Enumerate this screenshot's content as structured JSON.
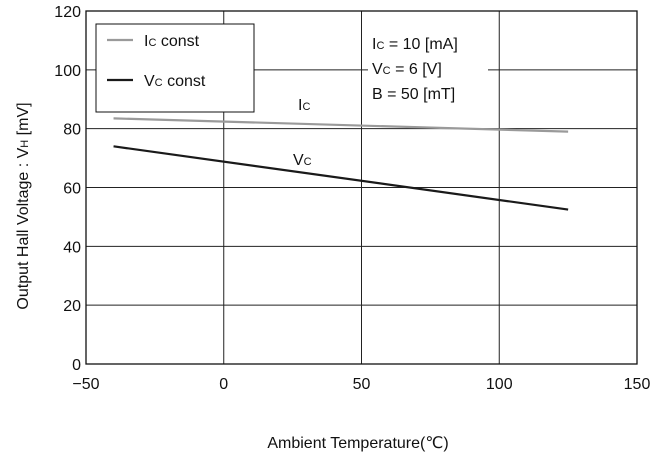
{
  "chart_data": {
    "type": "line",
    "title": "",
    "xlabel": "Ambient Temperature(℃)",
    "ylabel": "Output Hall Voltage : V",
    "ylabel_sub": "H",
    "ylabel_unit": " [mV]",
    "xlim": [
      -50,
      150
    ],
    "ylim": [
      0,
      120
    ],
    "xticks": [
      -50,
      0,
      50,
      100,
      150
    ],
    "xtick_labels": [
      "−50",
      "0",
      "50",
      "100",
      "150"
    ],
    "yticks": [
      0,
      20,
      40,
      60,
      80,
      100,
      120
    ],
    "ytick_labels": [
      "0",
      "20",
      "40",
      "60",
      "80",
      "100",
      "120"
    ],
    "grid": true,
    "series": [
      {
        "name": "Ic const",
        "legend_main": "I",
        "legend_sub": "C",
        "legend_rest": " const",
        "label_main": "I",
        "label_sub": "C",
        "color": "#9a9a9a",
        "x": [
          -40,
          125
        ],
        "y": [
          83.5,
          79
        ]
      },
      {
        "name": "Vc const",
        "legend_main": "V",
        "legend_sub": "C",
        "legend_rest": " const",
        "label_main": "V",
        "label_sub": "C",
        "color": "#1a1a1a",
        "x": [
          -40,
          125
        ],
        "y": [
          74,
          52.5
        ]
      }
    ],
    "legend_position": "top-left",
    "conditions": [
      {
        "main": "I",
        "sub": "C",
        "rest": "  = 10 [mA]"
      },
      {
        "main": "V",
        "sub": "C",
        "rest": " =  6  [V]"
      },
      {
        "main": "B",
        "sub": "",
        "rest": "  = 50 [mT]"
      }
    ]
  }
}
